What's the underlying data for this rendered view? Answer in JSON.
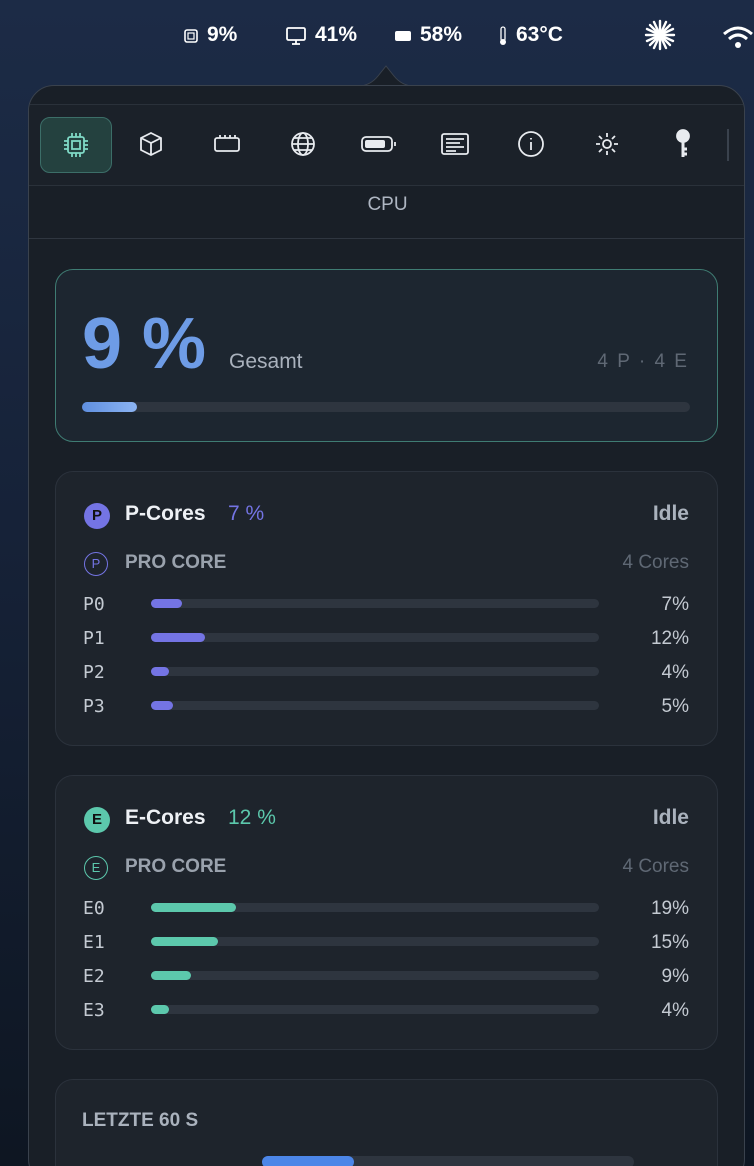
{
  "menu_bar": {
    "cpu": "9%",
    "memory": "41%",
    "battery": "58%",
    "temperature": "63°C"
  },
  "tab_title": "CPU",
  "total": {
    "value": 9,
    "label": "9 %",
    "caption": "Gesamt",
    "cores": "4 P · 4 E"
  },
  "clusters": [
    {
      "badge": "P",
      "title": "P-Cores",
      "usage": "7 %",
      "state": "Idle",
      "subtitle": "PRO CORE",
      "core_count": "4 Cores",
      "color": "#7474e4",
      "rows": [
        {
          "name": "P0",
          "value": 7,
          "label": "7%"
        },
        {
          "name": "P1",
          "value": 12,
          "label": "12%"
        },
        {
          "name": "P2",
          "value": 4,
          "label": "4%"
        },
        {
          "name": "P3",
          "value": 5,
          "label": "5%"
        }
      ]
    },
    {
      "badge": "E",
      "title": "E-Cores",
      "usage": "12 %",
      "state": "Idle",
      "subtitle": "PRO CORE",
      "core_count": "4 Cores",
      "color": "#5cc8ac",
      "rows": [
        {
          "name": "E0",
          "value": 19,
          "label": "19%"
        },
        {
          "name": "E1",
          "value": 15,
          "label": "15%"
        },
        {
          "name": "E2",
          "value": 9,
          "label": "9%"
        },
        {
          "name": "E3",
          "value": 4,
          "label": "4%"
        }
      ]
    }
  ],
  "history": {
    "title": "LETZTE 60 S"
  }
}
